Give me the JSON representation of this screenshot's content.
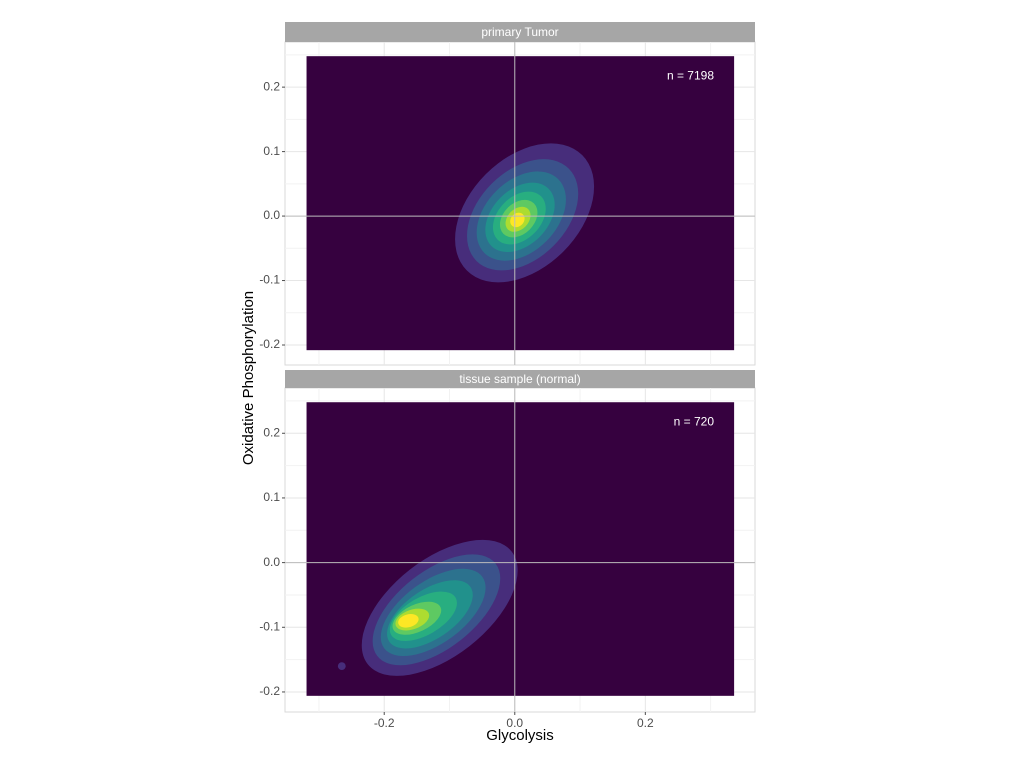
{
  "chart_data": {
    "type": "density2d",
    "x_label": "Glycolysis",
    "y_label": "Oxidative Phosphorylation",
    "xlim": [
      -0.352,
      0.368
    ],
    "ylim": [
      -0.231,
      0.27
    ],
    "xticks": [
      -0.2,
      {
        "value": 0,
        "label": "0.0"
      },
      0.2
    ],
    "yticks": [
      -0.2,
      -0.1,
      {
        "value": 0,
        "label": "0.0"
      },
      0.1,
      0.2
    ],
    "xminor": [
      -0.3,
      -0.1,
      0.1,
      0.3
    ],
    "yminor": [
      -0.15,
      -0.05,
      0.05,
      0.15,
      0.25
    ],
    "grid": true,
    "background": "#36013f",
    "facets": [
      {
        "title": "primary Tumor",
        "annotation": "n = 7198",
        "extent_x": [
          -0.319,
          0.336
        ],
        "extent_y": [
          -0.208,
          0.248
        ],
        "contours": [
          {
            "color": "#472d7b",
            "cx": 0.015,
            "cy": 0.005,
            "rx": 0.125,
            "ry": 0.085,
            "angle": 45
          },
          {
            "color": "#3b528b",
            "cx": 0.012,
            "cy": 0.002,
            "rx": 0.1,
            "ry": 0.068,
            "angle": 45
          },
          {
            "color": "#2c728e",
            "cx": 0.01,
            "cy": 0.0,
            "rx": 0.08,
            "ry": 0.055,
            "angle": 45
          },
          {
            "color": "#21918c",
            "cx": 0.008,
            "cy": -0.002,
            "rx": 0.062,
            "ry": 0.043,
            "angle": 45
          },
          {
            "color": "#28ae80",
            "cx": 0.007,
            "cy": -0.003,
            "rx": 0.047,
            "ry": 0.033,
            "angle": 45
          },
          {
            "color": "#5ec962",
            "cx": 0.006,
            "cy": -0.004,
            "rx": 0.033,
            "ry": 0.024,
            "angle": 45
          },
          {
            "color": "#addc30",
            "cx": 0.005,
            "cy": -0.005,
            "rx": 0.022,
            "ry": 0.016,
            "angle": 45
          },
          {
            "color": "#fde725",
            "cx": 0.004,
            "cy": -0.006,
            "rx": 0.012,
            "ry": 0.01,
            "angle": 45
          }
        ]
      },
      {
        "title": "tissue sample (normal)",
        "annotation": "n = 720",
        "extent_x": [
          -0.319,
          0.336
        ],
        "extent_y": [
          -0.206,
          0.248
        ],
        "contours": [
          {
            "color": "#472d7b",
            "cx": -0.265,
            "cy": -0.16,
            "rx": 0.006,
            "ry": 0.006,
            "angle": 0
          },
          {
            "color": "#472d7b",
            "cx": -0.115,
            "cy": -0.07,
            "rx": 0.14,
            "ry": 0.075,
            "angle": 38
          },
          {
            "color": "#3b528b",
            "cx": -0.12,
            "cy": -0.073,
            "rx": 0.115,
            "ry": 0.06,
            "angle": 38
          },
          {
            "color": "#2c728e",
            "cx": -0.125,
            "cy": -0.077,
            "rx": 0.093,
            "ry": 0.048,
            "angle": 36
          },
          {
            "color": "#21918c",
            "cx": -0.13,
            "cy": -0.08,
            "rx": 0.075,
            "ry": 0.038,
            "angle": 34
          },
          {
            "color": "#28ae80",
            "cx": -0.14,
            "cy": -0.083,
            "rx": 0.057,
            "ry": 0.029,
            "angle": 30
          },
          {
            "color": "#5ec962",
            "cx": -0.15,
            "cy": -0.086,
            "rx": 0.04,
            "ry": 0.021,
            "angle": 25
          },
          {
            "color": "#addc30",
            "cx": -0.157,
            "cy": -0.088,
            "rx": 0.027,
            "ry": 0.015,
            "angle": 20
          },
          {
            "color": "#fde725",
            "cx": -0.163,
            "cy": -0.09,
            "rx": 0.016,
            "ry": 0.01,
            "angle": 15
          }
        ]
      }
    ]
  }
}
